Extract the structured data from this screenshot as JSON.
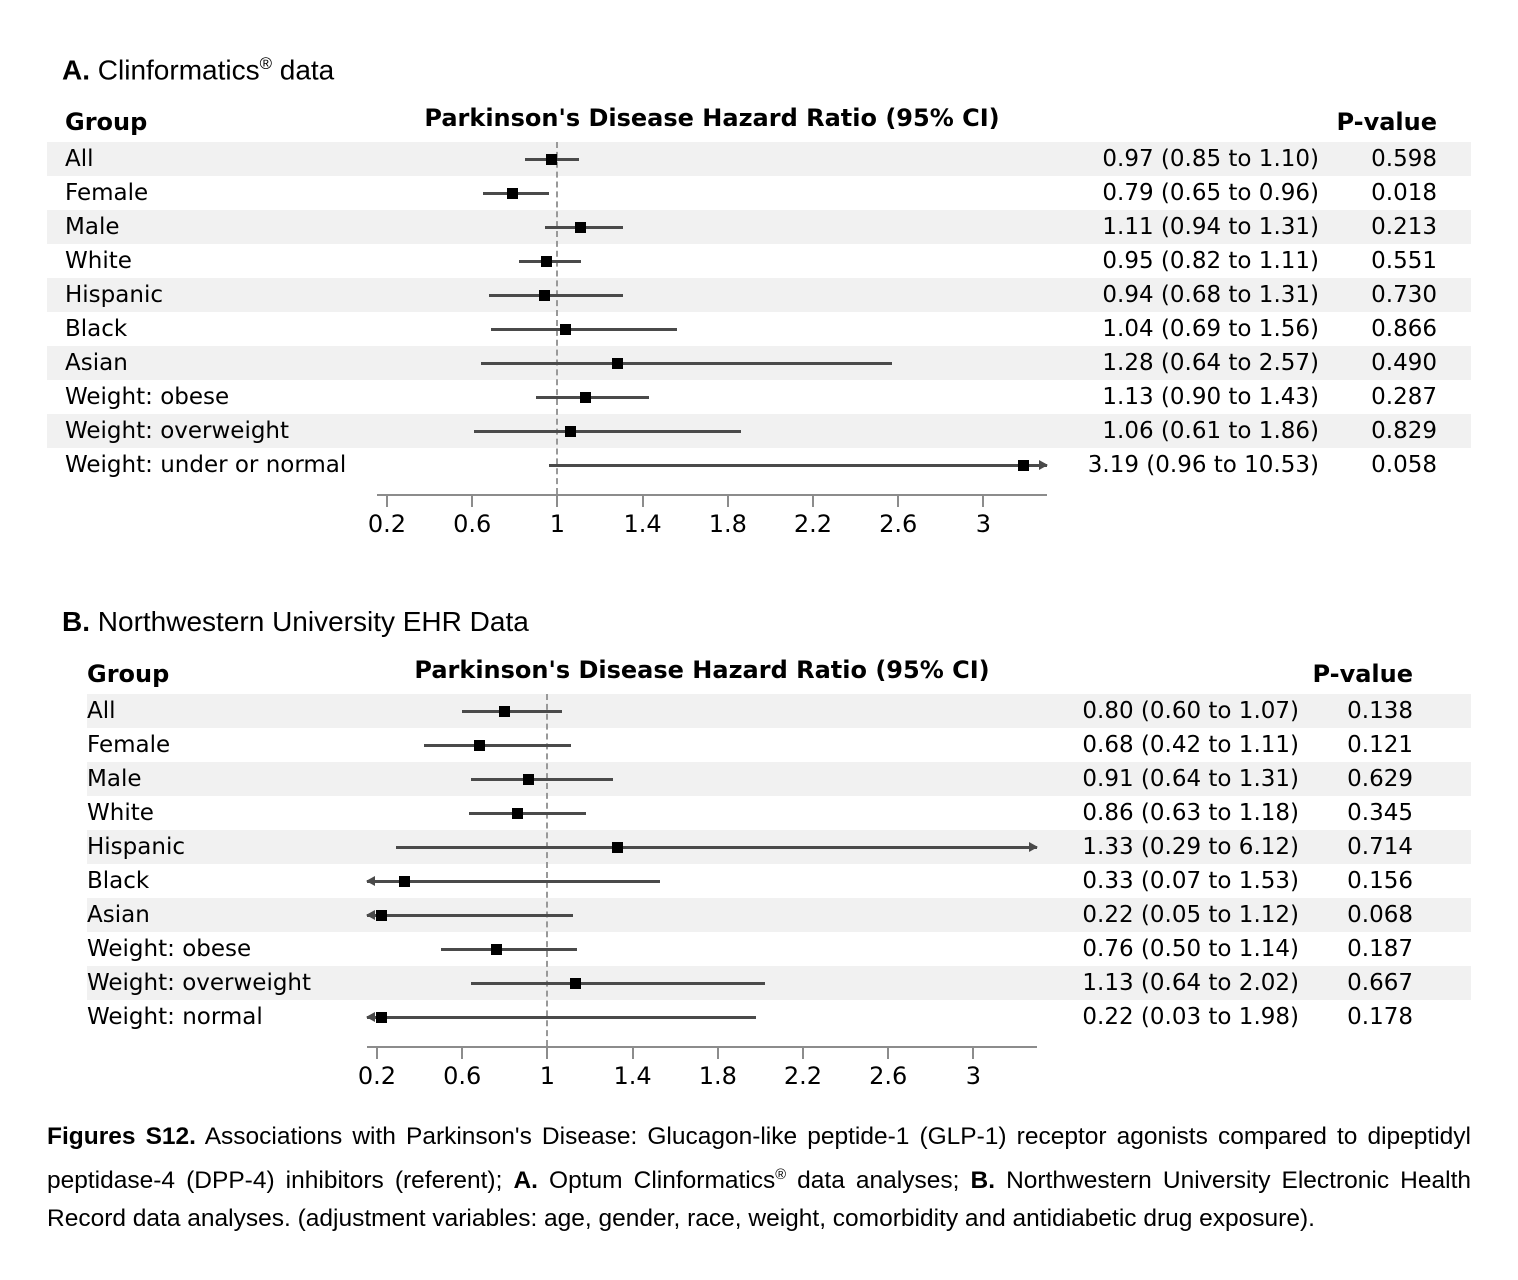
{
  "colors": {
    "background": "#ffffff",
    "row_stripe": "#f1f1f1",
    "ci_line": "#4a4a4a",
    "marker": "#000000",
    "reference_dash": "#999999",
    "axis": "#8c8c8c",
    "text": "#000000"
  },
  "chart_data": [
    {
      "type": "scatter",
      "variant": "forest-plot",
      "panel": "A",
      "title": "A. Clinformatics® data",
      "title_segments": [
        {
          "text": "A.",
          "bold": true
        },
        {
          "text": " Clinformatics"
        },
        {
          "text": "®",
          "sup": true
        },
        {
          "text": " data"
        }
      ],
      "columns": {
        "group": "Group",
        "hazard": "Parkinson's Disease Hazard Ratio (95% CI)",
        "pvalue": "P-value"
      },
      "xlim": [
        0.2,
        3.32
      ],
      "reference_line": 1.0,
      "grid": "off",
      "x_ticks": [
        {
          "value": 0.2,
          "label": "0.2"
        },
        {
          "value": 0.6,
          "label": "0.6"
        },
        {
          "value": 1.0,
          "label": "1"
        },
        {
          "value": 1.4,
          "label": "1.4"
        },
        {
          "value": 1.8,
          "label": "1.8"
        },
        {
          "value": 2.2,
          "label": "2.2"
        },
        {
          "value": 2.6,
          "label": "2.6"
        },
        {
          "value": 3.0,
          "label": "3"
        }
      ],
      "rows": [
        {
          "group": "All",
          "hr": 0.97,
          "ci_low": 0.85,
          "ci_high": 1.1,
          "ci_label": "0.97 (0.85 to 1.10)",
          "p_value": "0.598"
        },
        {
          "group": "Female",
          "hr": 0.79,
          "ci_low": 0.65,
          "ci_high": 0.96,
          "ci_label": "0.79 (0.65 to 0.96)",
          "p_value": "0.018"
        },
        {
          "group": "Male",
          "hr": 1.11,
          "ci_low": 0.94,
          "ci_high": 1.31,
          "ci_label": "1.11 (0.94 to 1.31)",
          "p_value": "0.213"
        },
        {
          "group": "White",
          "hr": 0.95,
          "ci_low": 0.82,
          "ci_high": 1.11,
          "ci_label": "0.95 (0.82 to 1.11)",
          "p_value": "0.551"
        },
        {
          "group": "Hispanic",
          "hr": 0.94,
          "ci_low": 0.68,
          "ci_high": 1.31,
          "ci_label": "0.94 (0.68 to 1.31)",
          "p_value": "0.730"
        },
        {
          "group": "Black",
          "hr": 1.04,
          "ci_low": 0.69,
          "ci_high": 1.56,
          "ci_label": "1.04 (0.69 to 1.56)",
          "p_value": "0.866"
        },
        {
          "group": "Asian",
          "hr": 1.28,
          "ci_low": 0.64,
          "ci_high": 2.57,
          "ci_label": "1.28 (0.64 to 2.57)",
          "p_value": "0.490"
        },
        {
          "group": "Weight: obese",
          "hr": 1.13,
          "ci_low": 0.9,
          "ci_high": 1.43,
          "ci_label": "1.13 (0.90 to 1.43)",
          "p_value": "0.287"
        },
        {
          "group": "Weight: overweight",
          "hr": 1.06,
          "ci_low": 0.61,
          "ci_high": 1.86,
          "ci_label": "1.06 (0.61 to 1.86)",
          "p_value": "0.829"
        },
        {
          "group": "Weight: under or normal",
          "hr": 3.19,
          "ci_low": 0.96,
          "ci_high": 10.53,
          "ci_label": "3.19 (0.96 to 10.53)",
          "p_value": "0.058"
        }
      ]
    },
    {
      "type": "scatter",
      "variant": "forest-plot",
      "panel": "B",
      "title": "B. Northwestern University EHR Data",
      "title_segments": [
        {
          "text": "B.",
          "bold": true
        },
        {
          "text": " Northwestern University EHR Data"
        }
      ],
      "columns": {
        "group": "Group",
        "hazard": "Parkinson's Disease Hazard Ratio (95% CI)",
        "pvalue": "P-value"
      },
      "xlim": [
        0.2,
        3.32
      ],
      "reference_line": 1.0,
      "grid": "off",
      "x_ticks": [
        {
          "value": 0.2,
          "label": "0.2"
        },
        {
          "value": 0.6,
          "label": "0.6"
        },
        {
          "value": 1.0,
          "label": "1"
        },
        {
          "value": 1.4,
          "label": "1.4"
        },
        {
          "value": 1.8,
          "label": "1.8"
        },
        {
          "value": 2.2,
          "label": "2.2"
        },
        {
          "value": 2.6,
          "label": "2.6"
        },
        {
          "value": 3.0,
          "label": "3"
        }
      ],
      "rows": [
        {
          "group": "All",
          "hr": 0.8,
          "ci_low": 0.6,
          "ci_high": 1.07,
          "ci_label": "0.80 (0.60 to 1.07)",
          "p_value": "0.138"
        },
        {
          "group": "Female",
          "hr": 0.68,
          "ci_low": 0.42,
          "ci_high": 1.11,
          "ci_label": "0.68 (0.42 to 1.11)",
          "p_value": "0.121"
        },
        {
          "group": "Male",
          "hr": 0.91,
          "ci_low": 0.64,
          "ci_high": 1.31,
          "ci_label": "0.91 (0.64 to 1.31)",
          "p_value": "0.629"
        },
        {
          "group": "White",
          "hr": 0.86,
          "ci_low": 0.63,
          "ci_high": 1.18,
          "ci_label": "0.86 (0.63 to 1.18)",
          "p_value": "0.345"
        },
        {
          "group": "Hispanic",
          "hr": 1.33,
          "ci_low": 0.29,
          "ci_high": 6.12,
          "ci_label": "1.33 (0.29 to 6.12)",
          "p_value": "0.714"
        },
        {
          "group": "Black",
          "hr": 0.33,
          "ci_low": 0.07,
          "ci_high": 1.53,
          "ci_label": "0.33 (0.07 to 1.53)",
          "p_value": "0.156"
        },
        {
          "group": "Asian",
          "hr": 0.22,
          "ci_low": 0.05,
          "ci_high": 1.12,
          "ci_label": "0.22 (0.05 to 1.12)",
          "p_value": "0.068"
        },
        {
          "group": "Weight: obese",
          "hr": 0.76,
          "ci_low": 0.5,
          "ci_high": 1.14,
          "ci_label": "0.76 (0.50 to 1.14)",
          "p_value": "0.187"
        },
        {
          "group": "Weight: overweight",
          "hr": 1.13,
          "ci_low": 0.64,
          "ci_high": 2.02,
          "ci_label": "1.13 (0.64 to 2.02)",
          "p_value": "0.667"
        },
        {
          "group": "Weight: normal",
          "hr": 0.22,
          "ci_low": 0.03,
          "ci_high": 1.98,
          "ci_label": "0.22 (0.03 to 1.98)",
          "p_value": "0.178"
        }
      ]
    }
  ],
  "caption": {
    "segments": [
      {
        "text": "Figures S12.",
        "bold": true
      },
      {
        "text": " Associations with Parkinson's Disease: Glucagon-like peptide-1 (GLP-1) receptor agonists compared to dipeptidyl peptidase-4 (DPP-4) inhibitors (referent); "
      },
      {
        "text": "A.",
        "bold": true
      },
      {
        "text": " Optum Clinformatics"
      },
      {
        "text": "®",
        "sup": true
      },
      {
        "text": " data analyses; "
      },
      {
        "text": "B.",
        "bold": true
      },
      {
        "text": " Northwestern University Electronic Health Record data analyses. (adjustment variables: age, gender, race, weight, comorbidity and antidiabetic drug exposure)."
      }
    ]
  }
}
